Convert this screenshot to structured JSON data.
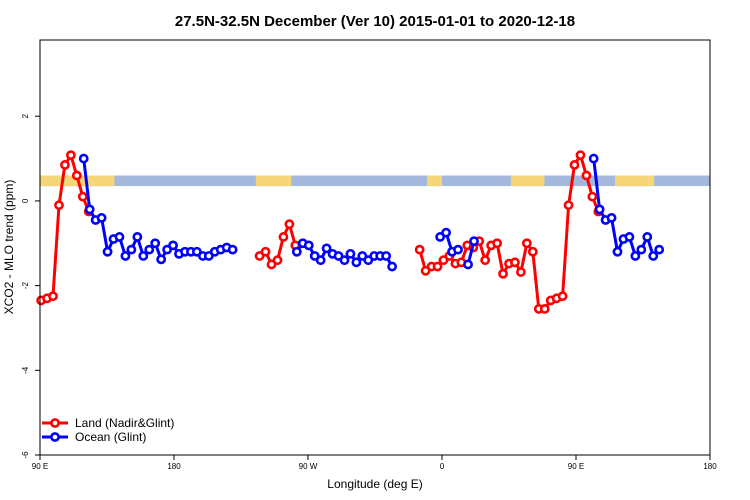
{
  "chart_data": {
    "type": "line",
    "title": "27.5N-32.5N December (Ver 10)   2015-01-01 to 2020-12-18",
    "xlabel": "Longitude (deg E)",
    "ylabel": "XCO2 - MLO trend (ppm)",
    "xlim": [
      90,
      450
    ],
    "ylim": [
      -6,
      3.8
    ],
    "x_ticks": [
      90,
      162,
      234,
      306,
      378,
      450
    ],
    "x_tick_labels": [
      "90 E",
      "180",
      "90 W",
      "0",
      "90 E",
      "180"
    ],
    "y_ticks": [
      -6,
      -4,
      -2,
      0,
      2
    ],
    "y_tick_labels": [
      "-6",
      "-4",
      "-2",
      "0",
      "2"
    ],
    "grid": false,
    "legend_position": "bottom-left",
    "land_mask": {
      "y_bottom": 0.35,
      "y_top": 0.6,
      "ocean_color": "#a3b8dc",
      "land_color": "#f5d77a",
      "land_ranges": [
        [
          90,
          130
        ],
        [
          206,
          225
        ],
        [
          298,
          306
        ],
        [
          343,
          361
        ],
        [
          399,
          420
        ]
      ]
    },
    "series": [
      {
        "name": "Land (Nadir&Glint)",
        "color": "#ff0000",
        "segments": [
          [
            [
              90.6,
              -2.35
            ],
            [
              93.8,
              -2.3
            ],
            [
              97.0,
              -2.25
            ],
            [
              100.2,
              -0.1
            ],
            [
              103.4,
              0.85
            ],
            [
              106.6,
              1.08
            ],
            [
              109.8,
              0.6
            ],
            [
              113.0,
              0.1
            ],
            [
              116.2,
              -0.25
            ]
          ],
          [
            [
              208.0,
              -1.3
            ],
            [
              211.2,
              -1.2
            ],
            [
              214.4,
              -1.5
            ],
            [
              217.6,
              -1.4
            ],
            [
              220.8,
              -0.85
            ],
            [
              224.0,
              -0.55
            ],
            [
              227.2,
              -1.05
            ]
          ],
          [
            [
              294.0,
              -1.15
            ],
            [
              297.2,
              -1.65
            ],
            [
              300.4,
              -1.55
            ],
            [
              303.6,
              -1.55
            ],
            [
              306.8,
              -1.4
            ],
            [
              310.0,
              -1.3
            ],
            [
              313.2,
              -1.48
            ],
            [
              316.4,
              -1.45
            ],
            [
              319.6,
              -1.05
            ],
            [
              322.8,
              -1.1
            ],
            [
              326.0,
              -0.95
            ],
            [
              329.2,
              -1.4
            ],
            [
              332.4,
              -1.05
            ],
            [
              335.6,
              -1.0
            ],
            [
              338.8,
              -1.72
            ],
            [
              342.0,
              -1.48
            ],
            [
              345.2,
              -1.45
            ],
            [
              348.4,
              -1.68
            ],
            [
              351.6,
              -1.0
            ],
            [
              354.8,
              -1.2
            ],
            [
              358.0,
              -2.55
            ],
            [
              361.2,
              -2.55
            ],
            [
              364.4,
              -2.35
            ],
            [
              367.6,
              -2.3
            ],
            [
              370.8,
              -2.25
            ],
            [
              374.0,
              -0.1
            ],
            [
              377.2,
              0.85
            ],
            [
              380.4,
              1.08
            ],
            [
              383.6,
              0.6
            ],
            [
              386.8,
              0.1
            ],
            [
              390.0,
              -0.25
            ]
          ]
        ]
      },
      {
        "name": "Ocean (Glint)",
        "color": "#0000ff",
        "segments": [
          [
            [
              113.5,
              1.0
            ],
            [
              116.7,
              -0.2
            ],
            [
              119.9,
              -0.45
            ],
            [
              123.1,
              -0.4
            ],
            [
              126.3,
              -1.2
            ],
            [
              129.5,
              -0.9
            ],
            [
              132.7,
              -0.85
            ],
            [
              135.9,
              -1.3
            ],
            [
              139.1,
              -1.15
            ],
            [
              142.3,
              -0.85
            ],
            [
              145.5,
              -1.3
            ],
            [
              148.7,
              -1.15
            ],
            [
              151.9,
              -1.0
            ],
            [
              155.1,
              -1.38
            ],
            [
              158.3,
              -1.15
            ],
            [
              161.5,
              -1.05
            ],
            [
              164.7,
              -1.25
            ],
            [
              167.9,
              -1.2
            ],
            [
              171.1,
              -1.2
            ],
            [
              174.3,
              -1.2
            ],
            [
              177.5,
              -1.3
            ],
            [
              180.7,
              -1.3
            ],
            [
              183.9,
              -1.2
            ],
            [
              187.1,
              -1.15
            ],
            [
              190.3,
              -1.1
            ],
            [
              193.5,
              -1.15
            ]
          ],
          [
            [
              228.0,
              -1.2
            ],
            [
              231.2,
              -1.0
            ],
            [
              234.4,
              -1.05
            ],
            [
              237.6,
              -1.3
            ],
            [
              240.8,
              -1.4
            ],
            [
              244.0,
              -1.12
            ],
            [
              247.2,
              -1.25
            ],
            [
              250.4,
              -1.3
            ],
            [
              253.6,
              -1.4
            ],
            [
              256.8,
              -1.25
            ],
            [
              260.0,
              -1.45
            ],
            [
              263.2,
              -1.3
            ],
            [
              266.4,
              -1.4
            ],
            [
              269.6,
              -1.3
            ],
            [
              272.8,
              -1.3
            ],
            [
              276.0,
              -1.3
            ],
            [
              279.2,
              -1.55
            ]
          ],
          [
            [
              305.0,
              -0.85
            ],
            [
              308.2,
              -0.75
            ],
            [
              311.4,
              -1.2
            ],
            [
              314.6,
              -1.15
            ]
          ],
          [
            [
              320.0,
              -1.5
            ],
            [
              323.2,
              -0.95
            ]
          ],
          [
            [
              387.5,
              1.0
            ],
            [
              390.7,
              -0.2
            ],
            [
              393.9,
              -0.45
            ],
            [
              397.1,
              -0.4
            ],
            [
              400.3,
              -1.2
            ],
            [
              403.5,
              -0.9
            ],
            [
              406.7,
              -0.85
            ],
            [
              409.9,
              -1.3
            ],
            [
              413.1,
              -1.15
            ],
            [
              416.3,
              -0.85
            ],
            [
              419.5,
              -1.3
            ],
            [
              422.7,
              -1.15
            ]
          ]
        ]
      }
    ]
  }
}
